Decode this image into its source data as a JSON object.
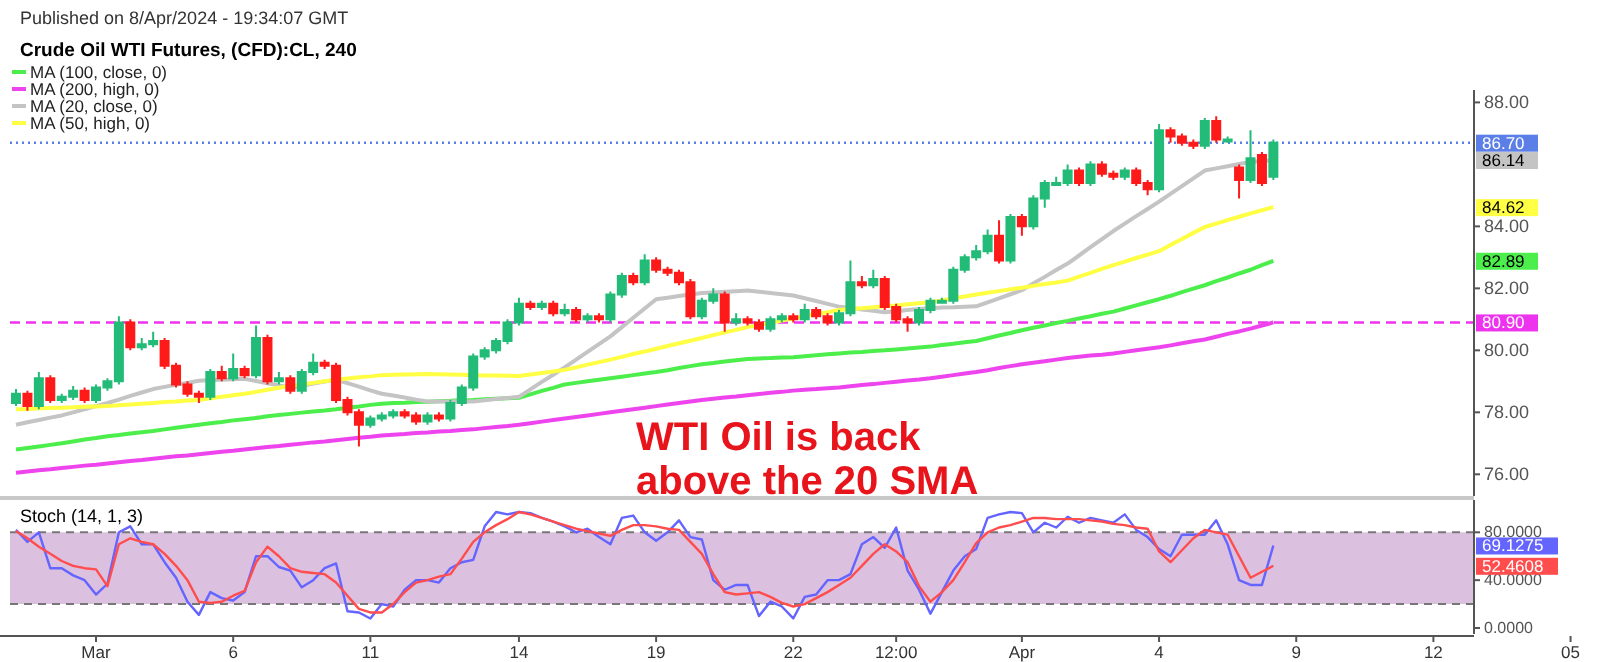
{
  "chart_data": [
    {
      "type": "candlestick",
      "title": "Crude Oil WTI Futures, (CFD):CL, 240",
      "annotations": [
        "Published on 8/Apr/2024 - 19:34:07 GMT",
        "WTI Oil is back above the 20 SMA",
        "86.14",
        "84.62",
        "82.89"
      ],
      "categories": [
        null,
        null,
        null,
        null,
        null,
        null,
        null,
        null,
        null,
        null,
        null,
        null,
        null,
        null,
        null,
        null,
        null,
        null,
        null,
        null,
        null,
        null,
        null,
        null,
        null,
        null,
        null,
        null,
        null,
        null,
        null,
        null,
        null,
        null,
        null,
        null,
        null,
        null,
        null,
        null,
        null,
        null,
        null,
        null,
        null,
        null,
        null,
        null,
        null,
        null,
        null,
        null,
        null,
        null,
        null,
        null,
        null,
        null,
        null,
        null,
        null,
        null,
        null,
        null,
        null,
        null,
        null,
        null,
        null,
        null,
        null,
        null,
        null,
        null,
        null,
        null,
        null,
        null,
        null,
        null,
        null,
        null,
        null,
        null,
        null,
        null,
        null,
        null,
        null,
        null,
        null,
        null,
        null,
        null,
        null,
        null,
        null,
        null,
        null,
        null,
        null,
        null,
        null,
        null,
        null,
        null,
        null,
        null,
        null,
        null,
        null,
        null,
        null,
        null,
        null,
        null,
        null,
        null,
        null,
        null,
        null,
        null,
        null,
        null,
        null,
        null,
        null,
        null,
        null,
        null,
        null,
        null,
        null,
        null,
        null,
        null,
        null,
        null
      ],
      "ohlc": [
        [
          78.3,
          78.75,
          78.2,
          78.6
        ],
        [
          78.6,
          78.7,
          78.05,
          78.2
        ],
        [
          78.2,
          79.3,
          78.1,
          79.1
        ],
        [
          79.1,
          79.2,
          78.3,
          78.4
        ],
        [
          78.4,
          78.6,
          78.3,
          78.5
        ],
        [
          78.5,
          78.85,
          78.4,
          78.7
        ],
        [
          78.7,
          78.8,
          78.3,
          78.4
        ],
        [
          78.4,
          78.9,
          78.3,
          78.8
        ],
        [
          78.8,
          79.1,
          78.7,
          79.0
        ],
        [
          79.0,
          81.1,
          78.9,
          80.9
        ],
        [
          80.9,
          81.0,
          80.0,
          80.1
        ],
        [
          80.1,
          80.4,
          80.0,
          80.2
        ],
        [
          80.2,
          80.6,
          80.1,
          80.3
        ],
        [
          80.3,
          80.4,
          79.4,
          79.5
        ],
        [
          79.5,
          79.6,
          78.8,
          78.9
        ],
        [
          78.9,
          79.0,
          78.5,
          78.6
        ],
        [
          78.6,
          78.7,
          78.3,
          78.5
        ],
        [
          78.5,
          79.4,
          78.4,
          79.3
        ],
        [
          79.3,
          79.5,
          79.0,
          79.1
        ],
        [
          79.1,
          79.9,
          79.0,
          79.4
        ],
        [
          79.4,
          79.5,
          79.1,
          79.2
        ],
        [
          79.2,
          80.8,
          79.1,
          80.4
        ],
        [
          80.4,
          80.5,
          78.9,
          79.0
        ],
        [
          79.0,
          79.3,
          78.9,
          79.1
        ],
        [
          79.1,
          79.2,
          78.6,
          78.7
        ],
        [
          78.7,
          79.4,
          78.6,
          79.3
        ],
        [
          79.3,
          79.9,
          79.2,
          79.6
        ],
        [
          79.6,
          79.7,
          79.4,
          79.5
        ],
        [
          79.5,
          79.6,
          78.3,
          78.4
        ],
        [
          78.4,
          78.5,
          77.9,
          78.0
        ],
        [
          78.0,
          78.1,
          76.9,
          77.6
        ],
        [
          77.6,
          77.9,
          77.5,
          77.8
        ],
        [
          77.8,
          78.0,
          77.7,
          77.9
        ],
        [
          77.9,
          78.1,
          77.8,
          78.0
        ],
        [
          78.0,
          78.1,
          77.8,
          77.9
        ],
        [
          77.9,
          78.0,
          77.6,
          77.7
        ],
        [
          77.7,
          78.0,
          77.6,
          77.9
        ],
        [
          77.9,
          78.0,
          77.7,
          77.8
        ],
        [
          77.8,
          78.4,
          77.7,
          78.3
        ],
        [
          78.3,
          78.9,
          78.2,
          78.8
        ],
        [
          78.8,
          79.9,
          78.7,
          79.8
        ],
        [
          79.8,
          80.1,
          79.7,
          80.0
        ],
        [
          80.0,
          80.4,
          79.9,
          80.3
        ],
        [
          80.3,
          81.0,
          80.2,
          80.9
        ],
        [
          80.9,
          81.7,
          80.8,
          81.5
        ],
        [
          81.5,
          81.6,
          81.3,
          81.4
        ],
        [
          81.4,
          81.6,
          81.3,
          81.5
        ],
        [
          81.5,
          81.6,
          81.1,
          81.2
        ],
        [
          81.2,
          81.5,
          81.1,
          81.3
        ],
        [
          81.3,
          81.4,
          80.9,
          81.0
        ],
        [
          81.0,
          81.2,
          80.9,
          81.1
        ],
        [
          81.1,
          81.2,
          80.9,
          81.0
        ],
        [
          81.0,
          81.9,
          80.9,
          81.8
        ],
        [
          81.8,
          82.5,
          81.7,
          82.4
        ],
        [
          82.4,
          82.5,
          82.1,
          82.2
        ],
        [
          82.2,
          83.1,
          82.1,
          82.9
        ],
        [
          82.9,
          83.0,
          82.5,
          82.6
        ],
        [
          82.6,
          82.7,
          82.4,
          82.5
        ],
        [
          82.5,
          82.6,
          82.1,
          82.2
        ],
        [
          82.2,
          82.3,
          81.0,
          81.1
        ],
        [
          81.1,
          81.7,
          81.0,
          81.6
        ],
        [
          81.6,
          82.0,
          81.5,
          81.8
        ],
        [
          81.8,
          81.9,
          80.6,
          80.9
        ],
        [
          80.9,
          81.2,
          80.8,
          81.0
        ],
        [
          81.0,
          81.1,
          80.8,
          80.9
        ],
        [
          80.9,
          81.0,
          80.6,
          80.7
        ],
        [
          80.7,
          81.1,
          80.6,
          81.0
        ],
        [
          81.0,
          81.2,
          80.9,
          81.1
        ],
        [
          81.1,
          81.2,
          80.9,
          81.0
        ],
        [
          81.0,
          81.5,
          80.9,
          81.3
        ],
        [
          81.3,
          81.4,
          81.0,
          81.1
        ],
        [
          81.1,
          81.2,
          80.8,
          80.9
        ],
        [
          80.9,
          81.3,
          80.8,
          81.2
        ],
        [
          81.2,
          82.9,
          81.1,
          82.2
        ],
        [
          82.2,
          82.4,
          82.0,
          82.1
        ],
        [
          82.1,
          82.6,
          82.0,
          82.3
        ],
        [
          82.3,
          82.4,
          81.3,
          81.4
        ],
        [
          81.4,
          81.5,
          80.9,
          81.0
        ],
        [
          81.0,
          81.1,
          80.6,
          80.9
        ],
        [
          80.9,
          81.4,
          80.8,
          81.3
        ],
        [
          81.3,
          81.7,
          81.2,
          81.6
        ],
        [
          81.6,
          81.7,
          81.5,
          81.6
        ],
        [
          81.6,
          82.7,
          81.5,
          82.6
        ],
        [
          82.6,
          83.1,
          82.5,
          83.0
        ],
        [
          83.0,
          83.4,
          82.9,
          83.2
        ],
        [
          83.2,
          83.9,
          83.1,
          83.7
        ],
        [
          83.7,
          84.2,
          82.8,
          82.9
        ],
        [
          82.9,
          84.4,
          82.8,
          84.3
        ],
        [
          84.3,
          84.4,
          83.7,
          84.0
        ],
        [
          84.0,
          85.0,
          83.9,
          84.9
        ],
        [
          84.9,
          85.5,
          84.6,
          85.4
        ],
        [
          85.4,
          85.6,
          85.3,
          85.4
        ],
        [
          85.4,
          86.0,
          85.3,
          85.8
        ],
        [
          85.8,
          85.9,
          85.3,
          85.4
        ],
        [
          85.4,
          86.1,
          85.3,
          86.0
        ],
        [
          86.0,
          86.1,
          85.6,
          85.7
        ],
        [
          85.7,
          85.8,
          85.5,
          85.6
        ],
        [
          85.6,
          85.9,
          85.5,
          85.8
        ],
        [
          85.8,
          85.9,
          85.3,
          85.4
        ],
        [
          85.4,
          85.5,
          85.0,
          85.2
        ],
        [
          85.2,
          87.3,
          85.1,
          87.1
        ],
        [
          87.1,
          87.2,
          86.7,
          86.9
        ],
        [
          86.9,
          87.0,
          86.6,
          86.7
        ],
        [
          86.7,
          86.8,
          86.5,
          86.6
        ],
        [
          86.6,
          87.5,
          86.5,
          87.4
        ],
        [
          87.4,
          87.55,
          86.7,
          86.8
        ],
        [
          86.8,
          86.9,
          86.7,
          86.8
        ],
        [
          85.9,
          86.0,
          84.9,
          85.5
        ],
        [
          85.5,
          87.1,
          85.4,
          86.2
        ],
        [
          86.3,
          86.4,
          85.3,
          85.4
        ],
        [
          85.6,
          86.8,
          85.5,
          86.7
        ],
        null,
        null,
        null,
        null,
        null,
        null,
        null,
        null,
        null,
        null,
        null,
        null,
        null,
        null,
        null,
        null,
        null,
        null,
        null,
        null,
        null,
        null,
        null,
        null,
        null,
        null,
        null
      ],
      "series": [
        {
          "name": "MA (100, close, 0)",
          "type": "line",
          "color": "#4cee4c",
          "values": [
            76.8,
            76.85,
            76.9,
            76.95,
            77.0,
            77.06,
            77.12,
            77.17,
            77.23,
            77.27,
            77.32,
            77.36,
            77.4,
            77.45,
            77.5,
            77.55,
            77.6,
            77.65,
            77.69,
            77.74,
            77.78,
            77.82,
            77.87,
            77.91,
            77.95,
            77.99,
            78.03,
            78.06,
            78.1,
            78.15,
            78.19,
            78.24,
            78.28,
            78.3,
            78.31,
            78.33,
            78.34,
            78.36,
            78.37,
            78.39,
            78.4,
            78.42,
            78.44,
            78.45,
            78.47,
            78.58,
            78.69,
            78.79,
            78.9,
            78.95,
            79.0,
            79.05,
            79.1,
            79.15,
            79.2,
            79.25,
            79.3,
            79.36,
            79.43,
            79.49,
            79.55,
            79.59,
            79.64,
            79.68,
            79.72,
            79.74,
            79.75,
            79.77,
            79.78,
            79.81,
            79.84,
            79.87,
            79.9,
            79.93,
            79.95,
            79.98,
            80.0,
            80.03,
            80.06,
            80.09,
            80.12,
            80.17,
            80.21,
            80.26,
            80.3,
            80.39,
            80.48,
            80.56,
            80.65,
            80.73,
            80.8,
            80.88,
            80.95,
            81.03,
            81.1,
            81.18,
            81.25,
            81.35,
            81.45,
            81.55,
            81.65,
            81.76,
            81.88,
            81.99,
            82.1,
            82.23,
            82.35,
            82.48,
            82.6,
            82.75,
            82.89,
            null,
            null,
            null,
            null,
            null,
            null,
            null,
            null,
            null,
            null,
            null,
            null,
            null,
            null,
            null,
            null,
            null,
            null,
            null,
            null,
            null,
            null,
            null,
            null,
            null,
            null,
            null
          ]
        },
        {
          "name": "MA (200, high, 0)",
          "type": "line",
          "color": "#ee44ee",
          "values": [
            76.05,
            76.09,
            76.13,
            76.16,
            76.2,
            76.24,
            76.28,
            76.31,
            76.35,
            76.39,
            76.43,
            76.46,
            76.5,
            76.54,
            76.58,
            76.61,
            76.65,
            76.69,
            76.73,
            76.76,
            76.8,
            76.84,
            76.88,
            76.91,
            76.95,
            76.99,
            77.03,
            77.06,
            77.1,
            77.14,
            77.18,
            77.21,
            77.25,
            77.28,
            77.3,
            77.33,
            77.35,
            77.38,
            77.4,
            77.43,
            77.45,
            77.49,
            77.53,
            77.56,
            77.6,
            77.65,
            77.7,
            77.75,
            77.8,
            77.85,
            77.9,
            77.95,
            78.0,
            78.05,
            78.1,
            78.15,
            78.2,
            78.25,
            78.3,
            78.35,
            78.4,
            78.44,
            78.48,
            78.51,
            78.55,
            78.59,
            78.63,
            78.66,
            78.7,
            78.73,
            78.75,
            78.78,
            78.8,
            78.84,
            78.88,
            78.91,
            78.95,
            78.99,
            79.03,
            79.06,
            79.1,
            79.15,
            79.2,
            79.25,
            79.3,
            79.36,
            79.43,
            79.49,
            79.55,
            79.6,
            79.65,
            79.7,
            79.75,
            79.79,
            79.83,
            79.86,
            79.9,
            79.95,
            80.0,
            80.05,
            80.1,
            80.16,
            80.23,
            80.29,
            80.35,
            80.44,
            80.53,
            80.61,
            80.7,
            80.8,
            80.9,
            null,
            null,
            null,
            null,
            null,
            null,
            null,
            null,
            null,
            null,
            null,
            null,
            null,
            null,
            null,
            null,
            null,
            null,
            null,
            null,
            null,
            null,
            null,
            null,
            null,
            null,
            null
          ]
        },
        {
          "name": "MA (20, close, 0)",
          "type": "line",
          "color": "#c4c4c4",
          "values": [
            77.6,
            77.68,
            77.75,
            77.83,
            77.9,
            78.0,
            78.1,
            78.2,
            78.3,
            78.41,
            78.53,
            78.64,
            78.75,
            78.82,
            78.89,
            78.95,
            79.02,
            79.04,
            79.05,
            79.07,
            79.08,
            79.01,
            78.94,
            78.87,
            78.8,
            78.86,
            78.93,
            78.99,
            79.05,
            78.94,
            78.83,
            78.71,
            78.6,
            78.54,
            78.48,
            78.41,
            78.35,
            78.35,
            78.35,
            78.35,
            78.35,
            78.39,
            78.43,
            78.46,
            78.5,
            78.74,
            78.98,
            79.21,
            79.45,
            79.7,
            79.95,
            80.2,
            80.45,
            80.75,
            81.05,
            81.35,
            81.65,
            81.7,
            81.75,
            81.8,
            81.85,
            81.87,
            81.89,
            81.91,
            81.93,
            81.89,
            81.85,
            81.81,
            81.77,
            81.68,
            81.59,
            81.5,
            81.41,
            81.37,
            81.32,
            81.28,
            81.23,
            81.26,
            81.3,
            81.33,
            81.36,
            81.38,
            81.39,
            81.41,
            81.42,
            81.55,
            81.68,
            81.81,
            81.94,
            82.16,
            82.37,
            82.59,
            82.8,
            83.06,
            83.33,
            83.59,
            83.85,
            84.09,
            84.33,
            84.56,
            84.8,
            85.05,
            85.3,
            85.55,
            85.8,
            85.87,
            85.94,
            86.01,
            86.08,
            86.11,
            86.14,
            null,
            null,
            null,
            null,
            null,
            null,
            null,
            null,
            null,
            null,
            null,
            null,
            null,
            null,
            null,
            null,
            null,
            null,
            null,
            null,
            null,
            null,
            null,
            null,
            null,
            null,
            null
          ]
        },
        {
          "name": "MA (50, high, 0)",
          "type": "line",
          "color": "#ffff44",
          "values": [
            78.1,
            78.11,
            78.13,
            78.14,
            78.15,
            78.16,
            78.18,
            78.19,
            78.2,
            78.23,
            78.25,
            78.28,
            78.3,
            78.33,
            78.35,
            78.38,
            78.4,
            78.45,
            78.5,
            78.55,
            78.6,
            78.66,
            78.73,
            78.79,
            78.85,
            78.9,
            78.95,
            79.0,
            79.05,
            79.09,
            79.13,
            79.16,
            79.2,
            79.21,
            79.22,
            79.23,
            79.24,
            79.23,
            79.22,
            79.21,
            79.2,
            79.19,
            79.19,
            79.18,
            79.17,
            79.22,
            79.27,
            79.32,
            79.37,
            79.45,
            79.54,
            79.62,
            79.7,
            79.79,
            79.88,
            79.96,
            80.05,
            80.14,
            80.23,
            80.31,
            80.4,
            80.49,
            80.58,
            80.66,
            80.75,
            80.82,
            80.89,
            80.96,
            81.03,
            81.1,
            81.17,
            81.23,
            81.3,
            81.33,
            81.36,
            81.39,
            81.42,
            81.45,
            81.49,
            81.52,
            81.55,
            81.61,
            81.68,
            81.74,
            81.8,
            81.86,
            81.91,
            81.97,
            82.02,
            82.08,
            82.14,
            82.19,
            82.25,
            82.38,
            82.5,
            82.63,
            82.75,
            82.86,
            82.98,
            83.09,
            83.2,
            83.4,
            83.59,
            83.79,
            83.98,
            84.09,
            84.2,
            84.31,
            84.42,
            84.52,
            84.62,
            null,
            null,
            null,
            null,
            null,
            null,
            null,
            null,
            null,
            null,
            null,
            null,
            null,
            null,
            null,
            null,
            null,
            null,
            null,
            null,
            null,
            null,
            null,
            null,
            null,
            null,
            null
          ]
        }
      ],
      "ref_lines": [
        {
          "axis": "y",
          "value": 86.7,
          "label": "86.70",
          "color": "#5b7fe6",
          "line_style": "dotted"
        },
        {
          "axis": "y",
          "value": 80.9,
          "label": "80.90",
          "color": "#ee33ee",
          "line_style": "dashed"
        }
      ],
      "ylim": [
        75.3,
        88.4
      ],
      "yticks": [
        {
          "value": 76,
          "label": "76.00"
        },
        {
          "value": 78,
          "label": "78.00"
        },
        {
          "value": 80,
          "label": "80.00"
        },
        {
          "value": 82,
          "label": "82.00"
        },
        {
          "value": 84,
          "label": "84.00"
        },
        {
          "value": 88,
          "label": "88.00"
        }
      ],
      "tick_labels": "y",
      "legend": "top left"
    },
    {
      "type": "line",
      "title": "Stoch (14, 1, 3)",
      "annotations": [
        "69.1275",
        "52.4608"
      ],
      "categories": [
        null,
        null,
        null,
        null,
        null,
        null,
        null,
        "Mar",
        null,
        null,
        null,
        null,
        null,
        null,
        null,
        null,
        null,
        null,
        null,
        "6",
        null,
        null,
        null,
        null,
        null,
        null,
        null,
        null,
        null,
        null,
        null,
        "11",
        null,
        null,
        null,
        null,
        null,
        null,
        null,
        null,
        null,
        null,
        null,
        null,
        "14",
        null,
        null,
        null,
        null,
        null,
        null,
        null,
        null,
        null,
        null,
        null,
        "19",
        null,
        null,
        null,
        null,
        null,
        null,
        null,
        null,
        null,
        null,
        null,
        "22",
        null,
        null,
        null,
        null,
        null,
        null,
        null,
        null,
        "12:00",
        null,
        null,
        null,
        null,
        null,
        null,
        null,
        null,
        null,
        null,
        "Apr",
        null,
        null,
        null,
        null,
        null,
        null,
        null,
        null,
        null,
        null,
        null,
        "4",
        null,
        null,
        null,
        null,
        null,
        null,
        null,
        null,
        null,
        null,
        null,
        "9",
        null,
        null,
        null,
        null,
        null,
        null,
        null,
        null,
        null,
        null,
        null,
        "12",
        null,
        null,
        null,
        null,
        null,
        null,
        null,
        null,
        null,
        null,
        null,
        "05",
        null
      ],
      "series": [
        {
          "color": "#6464ff",
          "values": [
            82,
            72,
            80,
            50,
            50,
            44,
            40,
            28,
            37,
            80,
            85,
            70,
            70,
            55,
            42,
            22,
            11,
            30,
            25,
            23,
            30,
            60,
            60,
            51,
            48,
            34,
            40,
            50,
            54,
            14,
            13,
            8,
            20,
            18,
            32,
            40,
            40,
            38,
            50,
            55,
            57,
            85,
            97,
            95,
            97,
            96,
            92,
            89,
            85,
            80,
            83,
            76,
            70,
            92,
            94,
            80,
            73,
            80,
            90,
            76,
            74,
            40,
            32,
            36,
            36,
            10,
            22,
            18,
            8,
            26,
            28,
            40,
            40,
            45,
            70,
            76,
            67,
            84,
            48,
            32,
            12,
            30,
            48,
            60,
            66,
            92,
            95,
            97,
            96,
            80,
            88,
            84,
            93,
            88,
            92,
            90,
            88,
            95,
            82,
            76,
            66,
            60,
            78,
            78,
            78,
            90,
            70,
            40,
            36,
            36,
            69,
            null,
            null,
            null,
            null,
            null,
            null,
            null,
            null,
            null,
            null,
            null,
            null,
            null,
            null,
            null,
            null,
            null,
            null,
            null,
            null,
            null,
            null,
            null,
            null,
            null,
            null,
            null
          ]
        },
        {
          "color": "#ff4d4d",
          "values": [
            81,
            75,
            68,
            62,
            56,
            52,
            50,
            49,
            35,
            70,
            75,
            72,
            70,
            62,
            52,
            40,
            22,
            21,
            22,
            27,
            31,
            55,
            68,
            60,
            50,
            47,
            46,
            45,
            38,
            27,
            16,
            13,
            13,
            20,
            30,
            38,
            40,
            43,
            45,
            58,
            72,
            80,
            86,
            91,
            97,
            95,
            92,
            89,
            86,
            83,
            81,
            79,
            77,
            82,
            86,
            86,
            85,
            83,
            82,
            72,
            62,
            45,
            30,
            28,
            29,
            30,
            26,
            21,
            18,
            20,
            25,
            30,
            36,
            42,
            52,
            62,
            70,
            64,
            55,
            35,
            22,
            30,
            40,
            55,
            71,
            80,
            84,
            86,
            89,
            92,
            92,
            91,
            91,
            91,
            90,
            89,
            87,
            86,
            84,
            83,
            64,
            55,
            65,
            75,
            82,
            80,
            78,
            60,
            42,
            47,
            52,
            null,
            null,
            null,
            null,
            null,
            null,
            null,
            null,
            null,
            null,
            null,
            null,
            null,
            null,
            null,
            null,
            null,
            null,
            null,
            null,
            null,
            null,
            null,
            null,
            null,
            null,
            null
          ]
        }
      ],
      "bands": [
        {
          "axis": "y",
          "from": 20,
          "to": 80,
          "color": "#dcc0e0"
        }
      ],
      "ylim": [
        -5,
        107
      ],
      "yticks": [
        {
          "value": 0,
          "label": "0.0000"
        },
        {
          "value": 40,
          "label": "40.0000"
        },
        {
          "value": 80,
          "label": "80.0000"
        }
      ]
    }
  ]
}
